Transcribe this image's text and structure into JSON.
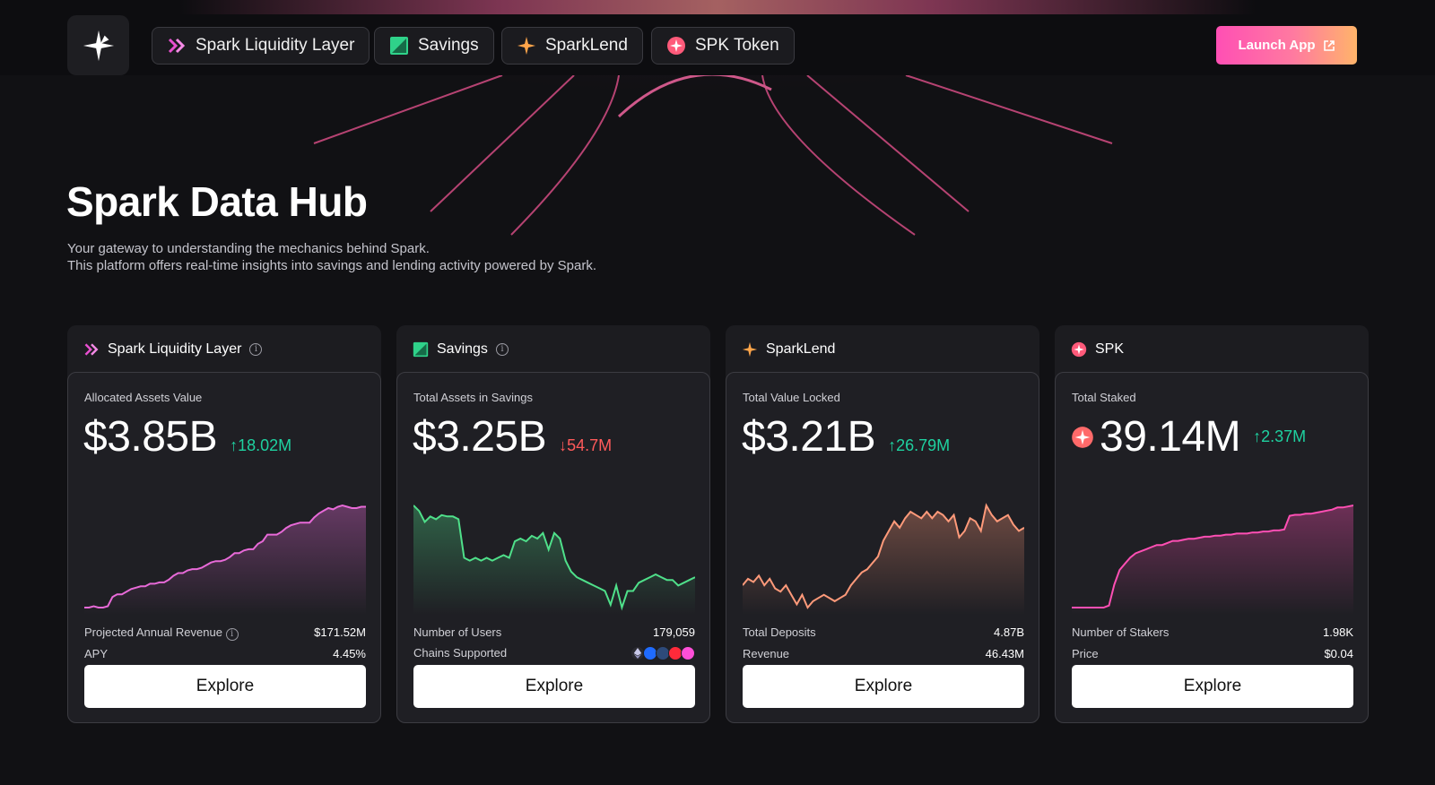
{
  "nav": {
    "items": [
      {
        "label": "Spark Liquidity Layer",
        "icon": "double-chevron-icon"
      },
      {
        "label": "Savings",
        "icon": "savings-icon"
      },
      {
        "label": "SparkLend",
        "icon": "sparklend-star-icon"
      },
      {
        "label": "SPK Token",
        "icon": "spk-token-icon"
      }
    ],
    "launch_label": "Launch App"
  },
  "hero": {
    "title": "Spark Data Hub",
    "line1": "Your gateway to understanding the mechanics behind Spark.",
    "line2": "This platform offers real-time insights into savings and lending activity powered by Spark."
  },
  "cards": [
    {
      "title": "Spark Liquidity Layer",
      "metric_label": "Allocated Assets Value",
      "value": "$3.85B",
      "delta": "18.02M",
      "delta_dir": "up",
      "stats": [
        {
          "label": "Projected Annual Revenue",
          "value": "$171.52M"
        },
        {
          "label": "APY",
          "value": "4.45%"
        }
      ],
      "explore": "Explore",
      "color": "#e86ad8",
      "series": [
        2,
        2,
        3,
        2,
        2,
        3,
        10,
        12,
        12,
        14,
        16,
        17,
        18,
        18,
        20,
        20,
        21,
        21,
        23,
        26,
        28,
        28,
        30,
        31,
        31,
        32,
        34,
        36,
        37,
        37,
        38,
        40,
        43,
        43,
        45,
        46,
        46,
        50,
        52,
        57,
        57,
        57,
        59,
        62,
        64,
        65,
        66,
        66,
        66,
        70,
        73,
        75,
        77,
        76,
        78,
        79,
        78,
        77,
        77,
        78,
        78
      ]
    },
    {
      "title": "Savings",
      "metric_label": "Total Assets in Savings",
      "value": "$3.25B",
      "delta": "54.7M",
      "delta_dir": "down",
      "stats": [
        {
          "label": "Number of Users",
          "value": "179,059"
        },
        {
          "label": "Chains Supported",
          "value": ""
        }
      ],
      "explore": "Explore",
      "color": "#4fe08a",
      "series": [
        82,
        78,
        70,
        74,
        72,
        75,
        74,
        74,
        72,
        44,
        42,
        44,
        42,
        44,
        42,
        44,
        46,
        44,
        56,
        58,
        56,
        60,
        58,
        62,
        50,
        62,
        58,
        42,
        34,
        30,
        28,
        26,
        24,
        22,
        20,
        10,
        24,
        8,
        20,
        20,
        26,
        28,
        30,
        32,
        30,
        28,
        28,
        24,
        26,
        28,
        30
      ]
    },
    {
      "title": "SparkLend",
      "metric_label": "Total Value Locked",
      "value": "$3.21B",
      "delta": "26.79M",
      "delta_dir": "up",
      "stats": [
        {
          "label": "Total Deposits",
          "value": "4.87B"
        },
        {
          "label": "Revenue",
          "value": "46.43M"
        }
      ],
      "explore": "Explore",
      "color": "#ff9a7a",
      "series": [
        30,
        34,
        32,
        36,
        30,
        34,
        28,
        26,
        30,
        24,
        18,
        24,
        16,
        20,
        22,
        24,
        22,
        20,
        22,
        24,
        30,
        34,
        38,
        40,
        44,
        48,
        58,
        64,
        70,
        66,
        72,
        76,
        74,
        72,
        76,
        72,
        76,
        74,
        70,
        74,
        60,
        64,
        72,
        70,
        64,
        80,
        74,
        70,
        72,
        74,
        68,
        64,
        66
      ]
    },
    {
      "title": "SPK",
      "metric_label": "Total Staked",
      "value": "39.14M",
      "delta": "2.37M",
      "delta_dir": "up",
      "stats": [
        {
          "label": "Number of Stakers",
          "value": "1.98K"
        },
        {
          "label": "Price",
          "value": "$0.04"
        }
      ],
      "explore": "Explore",
      "color": "#ff4fb4",
      "series": [
        2,
        2,
        2,
        2,
        2,
        2,
        2,
        4,
        24,
        38,
        44,
        50,
        54,
        56,
        58,
        60,
        62,
        62,
        64,
        66,
        66,
        67,
        68,
        68,
        69,
        70,
        70,
        71,
        71,
        72,
        72,
        73,
        73,
        73,
        74,
        74,
        75,
        75,
        76,
        76,
        77,
        90,
        91,
        91,
        92,
        92,
        93,
        94,
        95,
        96,
        98,
        98,
        99,
        100
      ]
    }
  ]
}
